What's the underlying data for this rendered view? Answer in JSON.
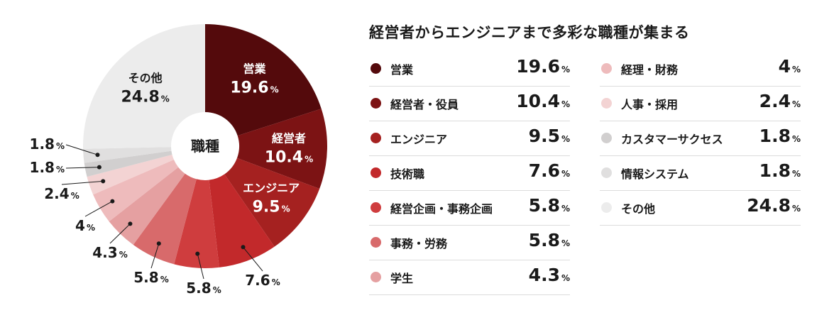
{
  "legend_title": "経営者からエンジニアまで多彩な職種が集まる",
  "center_label": "職種",
  "unit": "%",
  "chart_data": {
    "type": "pie",
    "title": "経営者からエンジニアまで多彩な職種が集まる",
    "categories": [
      "営業",
      "経営者・役員",
      "エンジニア",
      "技術職",
      "経営企画・事務企画",
      "事務・労務",
      "学生",
      "経理・財務",
      "人事・採用",
      "カスタマーサクセス",
      "情報システム",
      "その他"
    ],
    "values": [
      19.6,
      10.4,
      9.5,
      7.6,
      5.8,
      5.8,
      4.3,
      4,
      2.4,
      1.8,
      1.8,
      24.8
    ],
    "colors": [
      "#540a0c",
      "#7c1314",
      "#a52120",
      "#c2292b",
      "#cf3d3e",
      "#d86a6b",
      "#e5a0a1",
      "#eebbbc",
      "#f3d3d3",
      "#d1cfcf",
      "#e0dfdf",
      "#ececec"
    ],
    "slice_labels": [
      "営業",
      "経営者",
      "エンジニア",
      "",
      "",
      "",
      "",
      "",
      "",
      "",
      "",
      "その他"
    ],
    "legend": [
      {
        "label": "営業",
        "value": "19.6"
      },
      {
        "label": "経営者・役員",
        "value": "10.4"
      },
      {
        "label": "エンジニア",
        "value": "9.5"
      },
      {
        "label": "技術職",
        "value": "7.6"
      },
      {
        "label": "経営企画・事務企画",
        "value": "5.8"
      },
      {
        "label": "事務・労務",
        "value": "5.8"
      },
      {
        "label": "学生",
        "value": "4.3"
      },
      {
        "label": "経理・財務",
        "value": "4"
      },
      {
        "label": "人事・採用",
        "value": "2.4"
      },
      {
        "label": "カスタマーサクセス",
        "value": "1.8"
      },
      {
        "label": "情報システム",
        "value": "1.8"
      },
      {
        "label": "その他",
        "value": "24.8"
      }
    ]
  }
}
